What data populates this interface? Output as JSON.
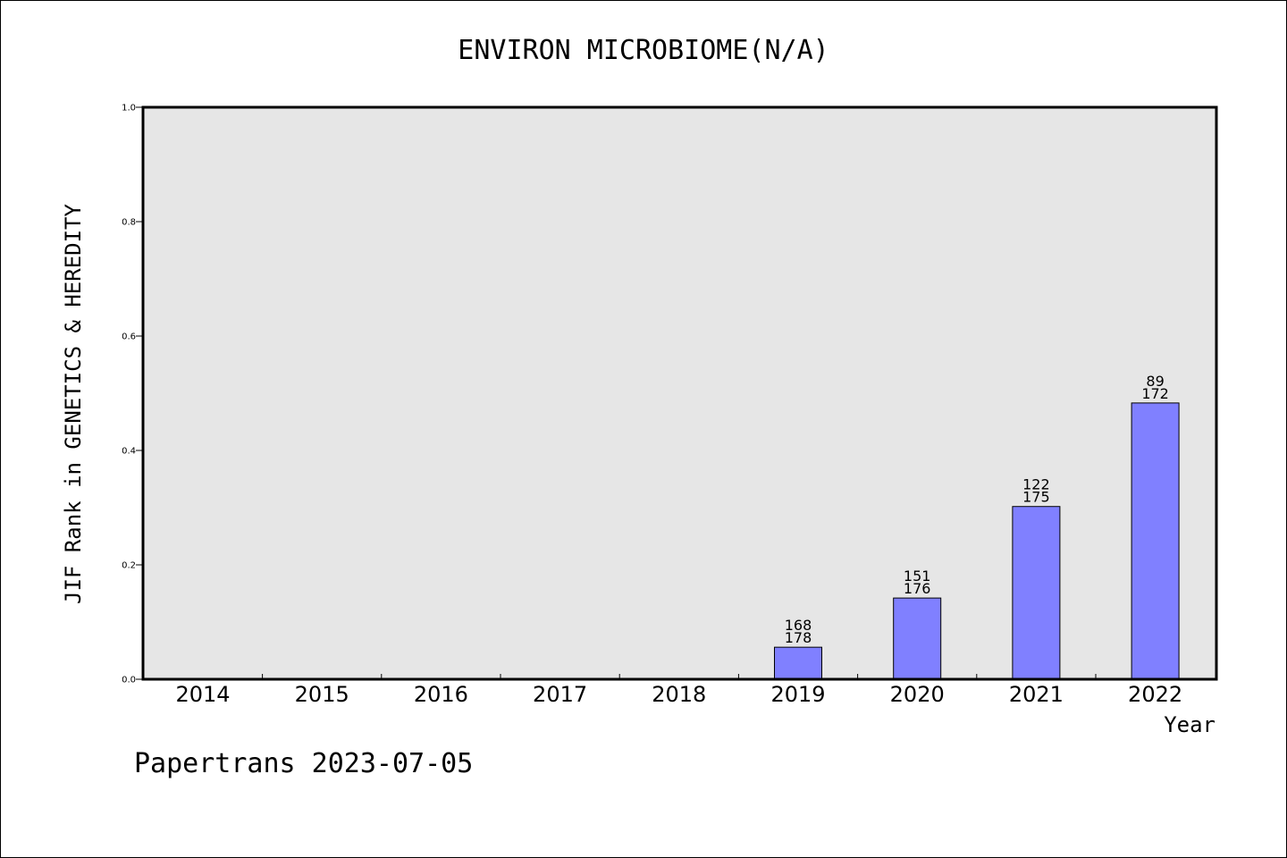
{
  "chart_data": {
    "type": "bar",
    "title": "ENVIRON MICROBIOME(N/A)",
    "xlabel": "Year",
    "ylabel": "JIF Rank in GENETICS & HEREDITY",
    "categories": [
      "2014",
      "2015",
      "2016",
      "2017",
      "2018",
      "2019",
      "2020",
      "2021",
      "2022"
    ],
    "values": [
      null,
      null,
      null,
      null,
      null,
      0.056,
      0.142,
      0.302,
      0.483
    ],
    "labels": [
      null,
      null,
      null,
      null,
      null,
      [
        "168",
        "178"
      ],
      [
        "151",
        "176"
      ],
      [
        "122",
        "175"
      ],
      [
        "89",
        "172"
      ]
    ],
    "ylim": [
      0,
      1.0
    ],
    "yticks": [
      "0.0",
      "0.2",
      "0.4",
      "0.6",
      "0.8",
      "1.0"
    ],
    "grid": false,
    "colors": {
      "bar_fill": "#8080ff",
      "plot_background": "#e6e6e6"
    }
  },
  "footer": "Papertrans 2023-07-05"
}
